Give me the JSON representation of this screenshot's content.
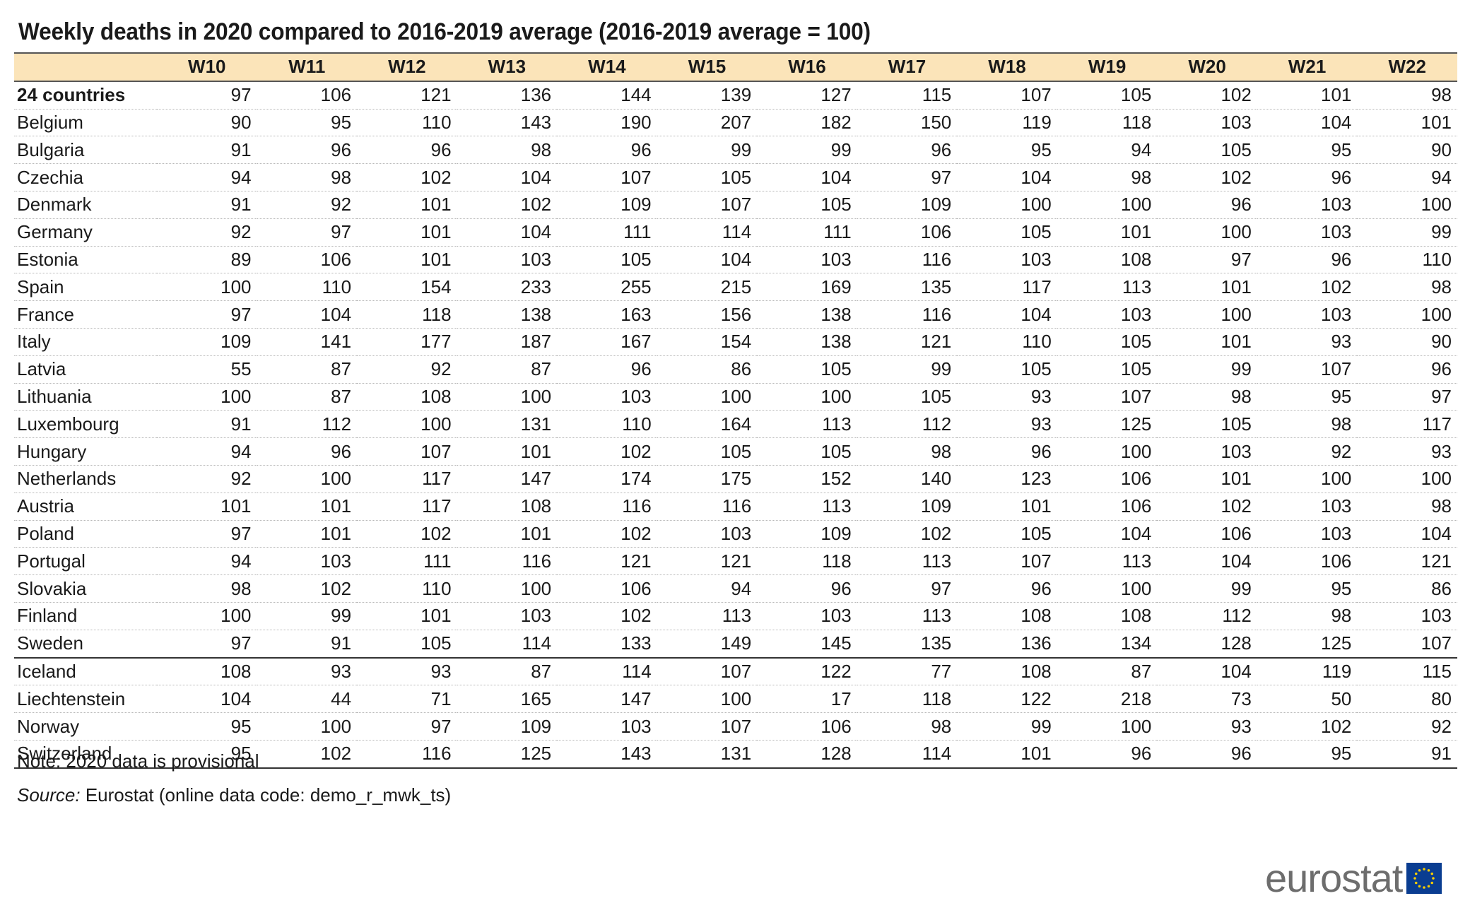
{
  "title": "Weekly deaths in 2020 compared to 2016-2019 average (2016-2019 average = 100)",
  "note": "Note: 2020 data is provisional",
  "source_label": "Source:",
  "source_text": " Eurostat (online data code: demo_r_mwk_ts)",
  "logo_text": "eurostat",
  "colors": {
    "header_bg": "#fbe4b9",
    "flag_blue": "#0a3d91",
    "flag_star": "#f5cc00"
  },
  "chart_data": {
    "type": "table",
    "title": "Weekly deaths in 2020 compared to 2016-2019 average (2016-2019 average = 100)",
    "columns": [
      "W10",
      "W11",
      "W12",
      "W13",
      "W14",
      "W15",
      "W16",
      "W17",
      "W18",
      "W19",
      "W20",
      "W21",
      "W22"
    ],
    "rows": [
      {
        "label": "24 countries",
        "values": [
          97,
          106,
          121,
          136,
          144,
          139,
          127,
          115,
          107,
          105,
          102,
          101,
          98
        ]
      },
      {
        "label": "Belgium",
        "values": [
          90,
          95,
          110,
          143,
          190,
          207,
          182,
          150,
          119,
          118,
          103,
          104,
          101
        ]
      },
      {
        "label": "Bulgaria",
        "values": [
          91,
          96,
          96,
          98,
          96,
          99,
          99,
          96,
          95,
          94,
          105,
          95,
          90
        ]
      },
      {
        "label": "Czechia",
        "values": [
          94,
          98,
          102,
          104,
          107,
          105,
          104,
          97,
          104,
          98,
          102,
          96,
          94
        ]
      },
      {
        "label": "Denmark",
        "values": [
          91,
          92,
          101,
          102,
          109,
          107,
          105,
          109,
          100,
          100,
          96,
          103,
          100
        ]
      },
      {
        "label": "Germany",
        "values": [
          92,
          97,
          101,
          104,
          111,
          114,
          111,
          106,
          105,
          101,
          100,
          103,
          99
        ]
      },
      {
        "label": "Estonia",
        "values": [
          89,
          106,
          101,
          103,
          105,
          104,
          103,
          116,
          103,
          108,
          97,
          96,
          110
        ]
      },
      {
        "label": "Spain",
        "values": [
          100,
          110,
          154,
          233,
          255,
          215,
          169,
          135,
          117,
          113,
          101,
          102,
          98
        ]
      },
      {
        "label": "France",
        "values": [
          97,
          104,
          118,
          138,
          163,
          156,
          138,
          116,
          104,
          103,
          100,
          103,
          100
        ]
      },
      {
        "label": "Italy",
        "values": [
          109,
          141,
          177,
          187,
          167,
          154,
          138,
          121,
          110,
          105,
          101,
          93,
          90
        ]
      },
      {
        "label": "Latvia",
        "values": [
          55,
          87,
          92,
          87,
          96,
          86,
          105,
          99,
          105,
          105,
          99,
          107,
          96
        ]
      },
      {
        "label": "Lithuania",
        "values": [
          100,
          87,
          108,
          100,
          103,
          100,
          100,
          105,
          93,
          107,
          98,
          95,
          97
        ]
      },
      {
        "label": "Luxembourg",
        "values": [
          91,
          112,
          100,
          131,
          110,
          164,
          113,
          112,
          93,
          125,
          105,
          98,
          117
        ]
      },
      {
        "label": "Hungary",
        "values": [
          94,
          96,
          107,
          101,
          102,
          105,
          105,
          98,
          96,
          100,
          103,
          92,
          93
        ]
      },
      {
        "label": "Netherlands",
        "values": [
          92,
          100,
          117,
          147,
          174,
          175,
          152,
          140,
          123,
          106,
          101,
          100,
          100
        ]
      },
      {
        "label": "Austria",
        "values": [
          101,
          101,
          117,
          108,
          116,
          116,
          113,
          109,
          101,
          106,
          102,
          103,
          98
        ]
      },
      {
        "label": "Poland",
        "values": [
          97,
          101,
          102,
          101,
          102,
          103,
          109,
          102,
          105,
          104,
          106,
          103,
          104
        ]
      },
      {
        "label": "Portugal",
        "values": [
          94,
          103,
          111,
          116,
          121,
          121,
          118,
          113,
          107,
          113,
          104,
          106,
          121
        ]
      },
      {
        "label": "Slovakia",
        "values": [
          98,
          102,
          110,
          100,
          106,
          94,
          96,
          97,
          96,
          100,
          99,
          95,
          86
        ]
      },
      {
        "label": "Finland",
        "values": [
          100,
          99,
          101,
          103,
          102,
          113,
          103,
          113,
          108,
          108,
          112,
          98,
          103
        ]
      },
      {
        "label": "Sweden",
        "values": [
          97,
          91,
          105,
          114,
          133,
          149,
          145,
          135,
          136,
          134,
          128,
          125,
          107
        ]
      },
      {
        "label": "Iceland",
        "values": [
          108,
          93,
          93,
          87,
          114,
          107,
          122,
          77,
          108,
          87,
          104,
          119,
          115
        ]
      },
      {
        "label": "Liechtenstein",
        "values": [
          104,
          44,
          71,
          165,
          147,
          100,
          17,
          118,
          122,
          218,
          73,
          50,
          80
        ]
      },
      {
        "label": "Norway",
        "values": [
          95,
          100,
          97,
          109,
          103,
          107,
          106,
          98,
          99,
          100,
          93,
          102,
          92
        ]
      },
      {
        "label": "Switzerland",
        "values": [
          95,
          102,
          116,
          125,
          143,
          131,
          128,
          114,
          101,
          96,
          96,
          95,
          91
        ]
      }
    ]
  }
}
